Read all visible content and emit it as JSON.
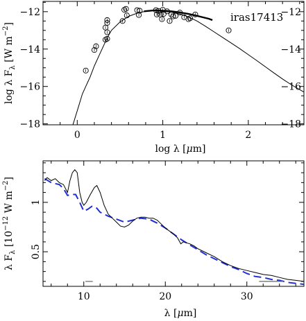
{
  "chart_data": [
    {
      "type": "scatter",
      "annotation": "iras17413",
      "xlabel": "log λ [μm]",
      "ylabel": "log λ F_λ [W m^-2]",
      "xlim": [
        -0.4,
        2.65
      ],
      "ylim": [
        -18.05,
        -11.45
      ],
      "xticks": [
        0,
        1,
        2
      ],
      "yticks": [
        -12,
        -14,
        -16,
        -18
      ],
      "x_tick_labels_visible": true,
      "grid": false,
      "series": [
        {
          "kind": "points",
          "marker": "open-circle",
          "points": [
            [
              0.1,
              -15.15
            ],
            [
              0.2,
              -14.05
            ],
            [
              0.22,
              -13.85
            ],
            [
              0.33,
              -13.5
            ],
            [
              0.35,
              -13.45
            ],
            [
              0.35,
              -13.1
            ],
            [
              0.33,
              -12.85
            ],
            [
              0.35,
              -12.6
            ],
            [
              0.35,
              -12.45
            ],
            [
              0.53,
              -12.5
            ],
            [
              0.58,
              -12.2
            ],
            [
              0.55,
              -11.9
            ],
            [
              0.57,
              -11.85
            ],
            [
              0.7,
              -11.92
            ],
            [
              0.73,
              -11.95
            ],
            [
              0.72,
              -12.18
            ],
            [
              0.92,
              -11.92
            ],
            [
              0.95,
              -11.96
            ],
            [
              0.93,
              -12.15
            ],
            [
              0.97,
              -12.15
            ],
            [
              1.0,
              -11.9
            ],
            [
              1.01,
              -12.12
            ],
            [
              0.99,
              -12.4
            ],
            [
              1.05,
              -11.98
            ],
            [
              1.08,
              -12.5
            ],
            [
              1.1,
              -12.15
            ],
            [
              1.12,
              -12.25
            ],
            [
              1.15,
              -12.22
            ],
            [
              1.2,
              -12.05
            ],
            [
              1.25,
              -12.3
            ],
            [
              1.3,
              -12.4
            ],
            [
              1.32,
              -12.35
            ],
            [
              1.38,
              -12.15
            ],
            [
              1.77,
              -13.0
            ]
          ]
        },
        {
          "kind": "line",
          "style": "solid",
          "points": [
            [
              -0.05,
              -18.05
            ],
            [
              0.02,
              -17.0
            ],
            [
              0.06,
              -16.4
            ],
            [
              0.1,
              -16.0
            ],
            [
              0.15,
              -15.5
            ],
            [
              0.2,
              -14.9
            ],
            [
              0.25,
              -14.4
            ],
            [
              0.3,
              -13.9
            ],
            [
              0.35,
              -13.4
            ],
            [
              0.4,
              -13.0
            ],
            [
              0.5,
              -12.55
            ],
            [
              0.6,
              -12.25
            ],
            [
              0.7,
              -12.08
            ],
            [
              0.8,
              -11.98
            ],
            [
              0.9,
              -11.95
            ],
            [
              1.0,
              -11.97
            ],
            [
              1.1,
              -12.02
            ],
            [
              1.2,
              -12.12
            ],
            [
              1.3,
              -12.28
            ],
            [
              1.4,
              -12.5
            ],
            [
              1.5,
              -12.78
            ],
            [
              1.6,
              -13.08
            ],
            [
              1.7,
              -13.38
            ],
            [
              1.8,
              -13.68
            ],
            [
              1.9,
              -13.98
            ],
            [
              2.0,
              -14.3
            ],
            [
              2.1,
              -14.62
            ],
            [
              2.2,
              -14.95
            ],
            [
              2.3,
              -15.28
            ],
            [
              2.4,
              -15.6
            ],
            [
              2.5,
              -15.9
            ],
            [
              2.65,
              -16.3
            ]
          ]
        },
        {
          "kind": "line",
          "style": "bold",
          "points": [
            [
              0.78,
              -11.98
            ],
            [
              0.9,
              -11.93
            ],
            [
              1.0,
              -11.95
            ],
            [
              1.1,
              -11.98
            ],
            [
              1.2,
              -12.04
            ],
            [
              1.3,
              -12.12
            ],
            [
              1.4,
              -12.22
            ],
            [
              1.45,
              -12.28
            ],
            [
              1.54,
              -12.38
            ],
            [
              1.58,
              -12.45
            ]
          ]
        }
      ]
    },
    {
      "type": "line",
      "xlabel": "λ [μm]",
      "ylabel": "λ F_λ [10^-12 W m^-2]",
      "xlim": [
        5.0,
        37.0
      ],
      "ylim": [
        0.15,
        1.42
      ],
      "xticks": [
        10,
        20,
        30
      ],
      "yticks": [
        0.5,
        1
      ],
      "grid": false,
      "series": [
        {
          "kind": "spectrum",
          "style": "solid-black",
          "points": [
            [
              5.2,
              1.22
            ],
            [
              5.5,
              1.25
            ],
            [
              6.0,
              1.22
            ],
            [
              6.5,
              1.24
            ],
            [
              7.0,
              1.2
            ],
            [
              7.5,
              1.18
            ],
            [
              8.0,
              1.1
            ],
            [
              8.3,
              1.22
            ],
            [
              8.6,
              1.3
            ],
            [
              8.9,
              1.33
            ],
            [
              9.2,
              1.3
            ],
            [
              9.5,
              1.1
            ],
            [
              9.8,
              1.0
            ],
            [
              10.0,
              0.97
            ],
            [
              10.3,
              1.0
            ],
            [
              10.8,
              1.08
            ],
            [
              11.3,
              1.15
            ],
            [
              11.6,
              1.17
            ],
            [
              12.0,
              1.1
            ],
            [
              12.5,
              0.97
            ],
            [
              13.0,
              0.88
            ],
            [
              13.5,
              0.84
            ],
            [
              14.0,
              0.8
            ],
            [
              14.5,
              0.76
            ],
            [
              15.0,
              0.75
            ],
            [
              15.5,
              0.77
            ],
            [
              16.0,
              0.81
            ],
            [
              16.5,
              0.84
            ],
            [
              17.0,
              0.85
            ],
            [
              17.5,
              0.85
            ],
            [
              18.0,
              0.84
            ],
            [
              18.5,
              0.84
            ],
            [
              19.0,
              0.82
            ],
            [
              19.5,
              0.78
            ],
            [
              20.0,
              0.74
            ],
            [
              20.5,
              0.71
            ],
            [
              21.0,
              0.68
            ],
            [
              21.5,
              0.64
            ],
            [
              21.9,
              0.58
            ],
            [
              22.2,
              0.6
            ],
            [
              22.6,
              0.59
            ],
            [
              23.0,
              0.58
            ],
            [
              23.5,
              0.56
            ],
            [
              24.0,
              0.53
            ],
            [
              25.0,
              0.49
            ],
            [
              26.0,
              0.45
            ],
            [
              27.0,
              0.4
            ],
            [
              28.0,
              0.36
            ],
            [
              29.0,
              0.33
            ],
            [
              30.0,
              0.31
            ],
            [
              31.0,
              0.29
            ],
            [
              32.0,
              0.27
            ],
            [
              33.0,
              0.26
            ],
            [
              34.0,
              0.24
            ],
            [
              35.0,
              0.22
            ],
            [
              36.0,
              0.21
            ],
            [
              37.0,
              0.2
            ]
          ]
        },
        {
          "kind": "model",
          "style": "dashed-blue",
          "points": [
            [
              5.2,
              1.24
            ],
            [
              6.0,
              1.2
            ],
            [
              7.0,
              1.18
            ],
            [
              7.5,
              1.14
            ],
            [
              8.0,
              1.07
            ],
            [
              8.5,
              1.08
            ],
            [
              9.0,
              1.08
            ],
            [
              9.5,
              1.0
            ],
            [
              10.0,
              0.91
            ],
            [
              10.5,
              0.93
            ],
            [
              11.0,
              0.96
            ],
            [
              11.5,
              0.95
            ],
            [
              12.0,
              0.9
            ],
            [
              13.0,
              0.86
            ],
            [
              14.0,
              0.83
            ],
            [
              15.0,
              0.8
            ],
            [
              16.0,
              0.82
            ],
            [
              17.0,
              0.84
            ],
            [
              18.0,
              0.83
            ],
            [
              19.0,
              0.79
            ],
            [
              20.0,
              0.74
            ],
            [
              21.0,
              0.68
            ],
            [
              22.0,
              0.62
            ],
            [
              23.0,
              0.57
            ],
            [
              24.0,
              0.52
            ],
            [
              25.0,
              0.47
            ],
            [
              26.0,
              0.43
            ],
            [
              27.0,
              0.39
            ],
            [
              28.0,
              0.35
            ],
            [
              29.0,
              0.32
            ],
            [
              30.0,
              0.28
            ],
            [
              31.0,
              0.25
            ],
            [
              32.0,
              0.24
            ],
            [
              33.0,
              0.22
            ],
            [
              34.0,
              0.21
            ],
            [
              35.0,
              0.19
            ],
            [
              36.0,
              0.18
            ],
            [
              37.0,
              0.17
            ]
          ]
        },
        {
          "kind": "segment",
          "style": "solid-gray",
          "points": [
            [
              10.2,
              0.2
            ],
            [
              11.1,
              0.2
            ]
          ]
        },
        {
          "kind": "segment",
          "style": "solid-gray",
          "points": [
            [
              31.5,
              0.2
            ],
            [
              34.5,
              0.2
            ]
          ]
        }
      ]
    }
  ],
  "colors": {
    "axis": "#000000",
    "model": "#1f2fd6",
    "marker": "#000000",
    "segment": "#666666"
  }
}
